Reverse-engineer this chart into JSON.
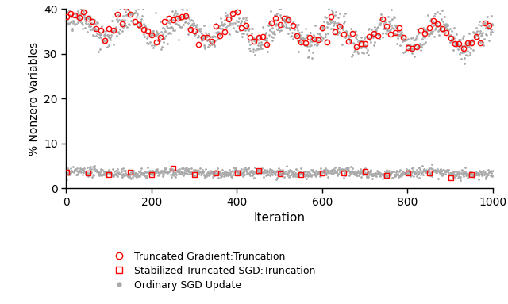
{
  "title": "",
  "xlabel": "Iteration",
  "ylabel": "% Nonzero Variables",
  "xlim": [
    0,
    1000
  ],
  "ylim": [
    0,
    40
  ],
  "xticks": [
    0,
    200,
    400,
    600,
    800,
    1000
  ],
  "yticks": [
    0,
    10,
    20,
    30,
    40
  ],
  "upper_mean_start": 36.5,
  "upper_mean_end": 33.5,
  "upper_slow_amplitude": 2.5,
  "upper_slow_period": 120,
  "upper_noise_std": 1.2,
  "upper_gray_noise_std": 1.5,
  "lower_mean": 3.5,
  "lower_slow_amplitude": 0.3,
  "lower_slow_period": 200,
  "lower_noise_std": 0.4,
  "lower_gray_noise_std": 0.5,
  "n_iterations": 1000,
  "circle_every": 10,
  "square_every": 50,
  "red_color": "#FF0000",
  "gray_color": "#AAAAAA",
  "background_color": "#FFFFFF",
  "legend_circle_label": "Truncated Gradient:Truncation",
  "legend_square_label": "Stabilized Truncated SGD:Truncation",
  "legend_dot_label": "Ordinary SGD Update",
  "seed": 42
}
